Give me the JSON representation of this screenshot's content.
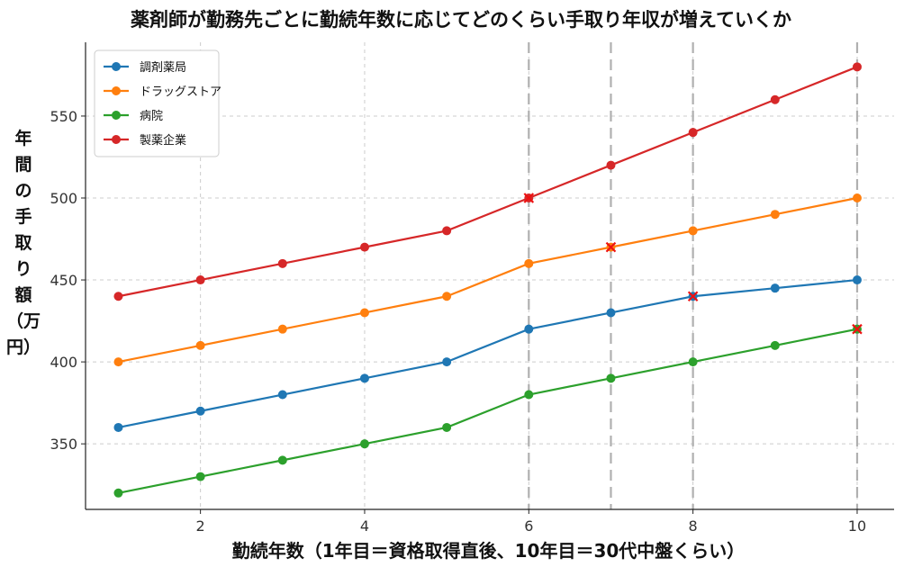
{
  "chart_data": {
    "type": "line",
    "title": "薬剤師が勤務先ごとに勤続年数に応じてどのくらい手取り年収が増えていくか",
    "xlabel": "勤続年数（1年目＝資格取得直後、10年目＝30代中盤くらい）",
    "ylabel": "年間の手取り額（万円）",
    "x": [
      1,
      2,
      3,
      4,
      5,
      6,
      7,
      8,
      9,
      10
    ],
    "xticks": [
      "2",
      "4",
      "6",
      "8",
      "10"
    ],
    "yticks": [
      "350",
      "400",
      "450",
      "500",
      "550"
    ],
    "xlim": [
      0.6,
      10.45
    ],
    "ylim": [
      310,
      595
    ],
    "grid": true,
    "legend_position": "top-left",
    "markers": {
      "vertical_dashed_lines_at_x": [
        6,
        7,
        8,
        10
      ]
    },
    "series": [
      {
        "name": "調剤薬局",
        "color": "#1f77b4",
        "values": [
          360,
          370,
          380,
          390,
          400,
          420,
          430,
          440,
          445,
          450
        ],
        "x_marks": [
          8
        ]
      },
      {
        "name": "ドラッグストア",
        "color": "#ff7f0e",
        "values": [
          400,
          410,
          420,
          430,
          440,
          460,
          470,
          480,
          490,
          500
        ],
        "x_marks": [
          7
        ]
      },
      {
        "name": "病院",
        "color": "#2ca02c",
        "values": [
          320,
          330,
          340,
          350,
          360,
          380,
          390,
          400,
          410,
          420
        ],
        "x_marks": [
          10
        ]
      },
      {
        "name": "製薬企業",
        "color": "#d62728",
        "values": [
          440,
          450,
          460,
          470,
          480,
          500,
          520,
          540,
          560,
          580
        ],
        "x_marks": [
          6
        ]
      }
    ]
  }
}
